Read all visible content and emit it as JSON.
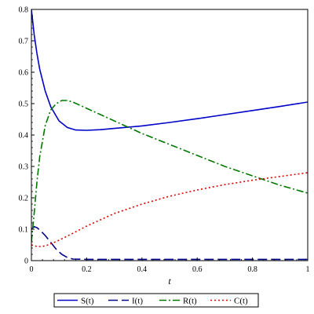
{
  "chart_data": {
    "type": "line",
    "title": "",
    "xlabel": "t",
    "ylabel": "",
    "xlim": [
      0,
      1
    ],
    "ylim": [
      0,
      0.8
    ],
    "x_ticks": [
      "0",
      "0.2",
      "0.4",
      "0.6",
      "0.8",
      "1"
    ],
    "y_ticks": [
      "0",
      "0.1",
      "0.2",
      "0.3",
      "0.4",
      "0.5",
      "0.6",
      "0.7",
      "0.8"
    ],
    "grid": false,
    "legend_position": "bottom",
    "series": [
      {
        "name": "S(t)",
        "color": "#0000c8",
        "style": "solid",
        "x": [
          0,
          0.01,
          0.02,
          0.03,
          0.05,
          0.07,
          0.1,
          0.13,
          0.16,
          0.2,
          0.25,
          0.3,
          0.4,
          0.5,
          0.6,
          0.7,
          0.8,
          0.9,
          1.0
        ],
        "y": [
          0.8,
          0.72,
          0.66,
          0.61,
          0.54,
          0.49,
          0.445,
          0.424,
          0.416,
          0.415,
          0.417,
          0.421,
          0.429,
          0.44,
          0.452,
          0.465,
          0.478,
          0.491,
          0.505
        ]
      },
      {
        "name": "I(t)",
        "color": "#00008b",
        "style": "dashed",
        "x": [
          0,
          0.01,
          0.02,
          0.03,
          0.05,
          0.07,
          0.09,
          0.11,
          0.13,
          0.15,
          0.2,
          0.4,
          0.6,
          0.8,
          1.0
        ],
        "y": [
          0.1,
          0.108,
          0.105,
          0.098,
          0.08,
          0.058,
          0.036,
          0.02,
          0.01,
          0.005,
          0.004,
          0.004,
          0.004,
          0.004,
          0.004
        ]
      },
      {
        "name": "R(t)",
        "color": "#007800",
        "style": "dashdot",
        "x": [
          0,
          0.01,
          0.02,
          0.03,
          0.05,
          0.07,
          0.09,
          0.11,
          0.13,
          0.15,
          0.2,
          0.3,
          0.4,
          0.5,
          0.6,
          0.7,
          0.8,
          0.9,
          1.0
        ],
        "y": [
          0.06,
          0.15,
          0.25,
          0.33,
          0.43,
          0.48,
          0.5,
          0.51,
          0.51,
          0.505,
          0.485,
          0.445,
          0.405,
          0.37,
          0.335,
          0.3,
          0.27,
          0.24,
          0.215
        ]
      },
      {
        "name": "C(t)",
        "color": "#e00000",
        "style": "dotted",
        "x": [
          0,
          0.02,
          0.04,
          0.06,
          0.08,
          0.1,
          0.15,
          0.2,
          0.3,
          0.4,
          0.5,
          0.6,
          0.7,
          0.8,
          0.9,
          1.0
        ],
        "y": [
          0.05,
          0.045,
          0.045,
          0.05,
          0.057,
          0.065,
          0.087,
          0.11,
          0.15,
          0.18,
          0.205,
          0.225,
          0.242,
          0.256,
          0.268,
          0.28
        ]
      }
    ]
  }
}
